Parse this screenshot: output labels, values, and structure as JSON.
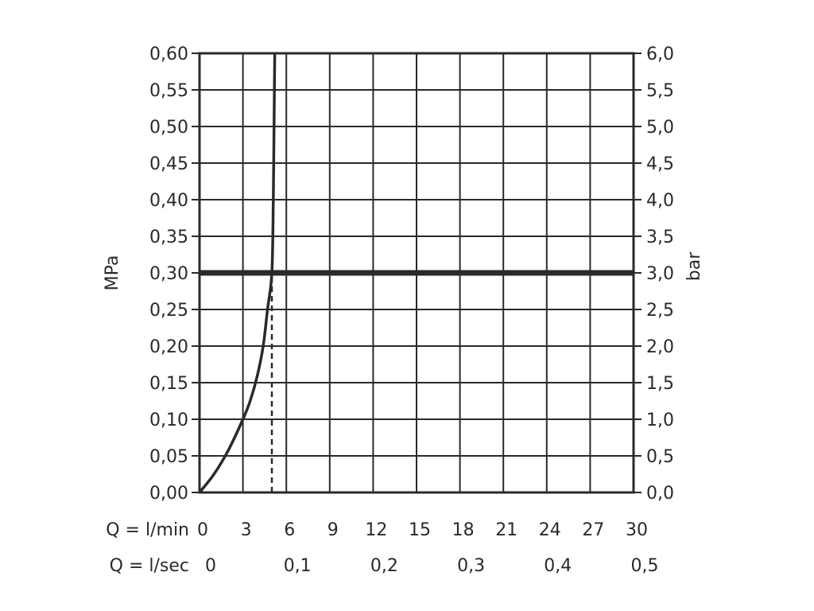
{
  "chart_data": {
    "type": "line",
    "xlabel": "Q = l/min",
    "xlabel_secondary": "Q = l/sec",
    "ylabel_left": "MPa",
    "ylabel_right": "bar",
    "xlim": [
      0,
      30
    ],
    "ylim": [
      0,
      0.6
    ],
    "x_ticks": [
      "0",
      "3",
      "6",
      "9",
      "12",
      "15",
      "18",
      "21",
      "24",
      "27",
      "30"
    ],
    "x_ticks_values": [
      0,
      3,
      6,
      9,
      12,
      15,
      18,
      21,
      24,
      27,
      30
    ],
    "x_ticks_secondary": [
      "0",
      "0,1",
      "0,2",
      "0,3",
      "0,4",
      "0,5"
    ],
    "x_ticks_secondary_values": [
      0,
      6,
      12,
      18,
      24,
      30
    ],
    "y_ticks_left": [
      "0,00",
      "0,05",
      "0,10",
      "0,15",
      "0,20",
      "0,25",
      "0,30",
      "0,35",
      "0,40",
      "0,45",
      "0,50",
      "0,55",
      "0,60"
    ],
    "y_ticks_right": [
      "0,0",
      "0,5",
      "1,0",
      "1,5",
      "2,0",
      "2,5",
      "3,0",
      "3,5",
      "4,0",
      "4,5",
      "5,0",
      "5,5",
      "6,0"
    ],
    "y_ticks_values": [
      0,
      0.05,
      0.1,
      0.15,
      0.2,
      0.25,
      0.3,
      0.35,
      0.4,
      0.45,
      0.5,
      0.55,
      0.6
    ],
    "grid": true,
    "series": [
      {
        "values": [
          [
            0,
            0
          ],
          [
            1,
            0.025
          ],
          [
            2,
            0.058
          ],
          [
            3,
            0.1
          ],
          [
            3.5,
            0.125
          ],
          [
            4,
            0.16
          ],
          [
            4.4,
            0.2
          ],
          [
            4.7,
            0.25
          ],
          [
            5.0,
            0.3
          ],
          [
            5.1,
            0.4
          ],
          [
            5.15,
            0.5
          ],
          [
            5.2,
            0.6
          ]
        ]
      }
    ],
    "reference_lines": [
      {
        "orientation": "horizontal",
        "y": 0.3,
        "style": "bold"
      },
      {
        "orientation": "vertical",
        "x": 5.0,
        "y_from": 0,
        "y_to": 0.3,
        "style": "dashed"
      }
    ],
    "colors": {
      "line": "#2a2a2a",
      "grid": "#2a2a2a",
      "text": "#2a2a2a",
      "background": "#ffffff"
    }
  }
}
